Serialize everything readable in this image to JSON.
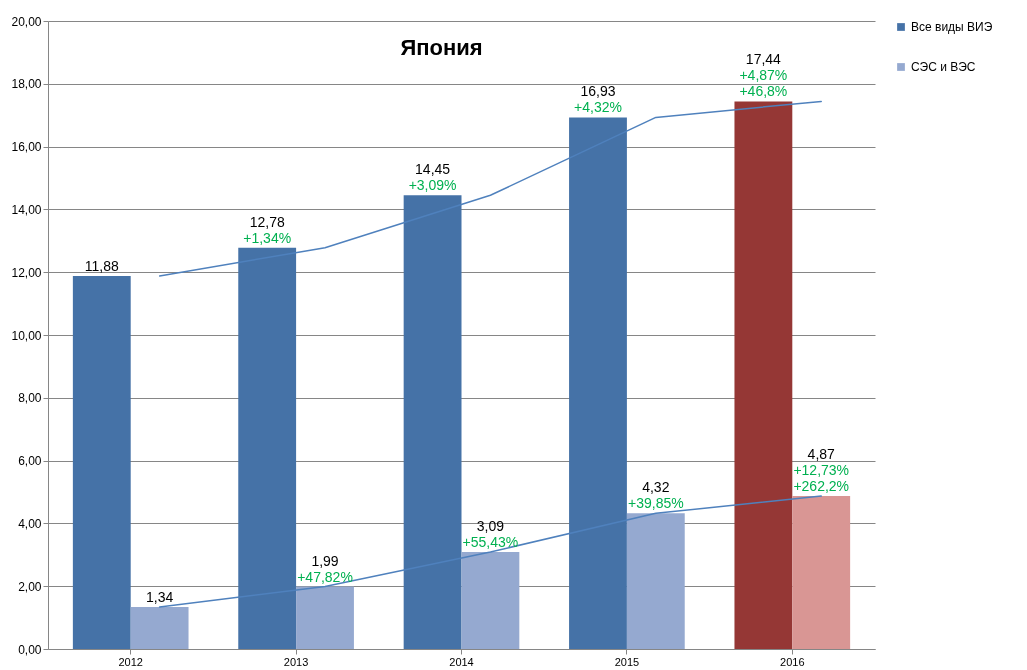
{
  "chart_data": {
    "type": "bar",
    "title": "Япония",
    "categories": [
      "2012",
      "2013",
      "2014",
      "2015",
      "2016"
    ],
    "series": [
      {
        "name": "Все виды ВИЭ",
        "colors": [
          "#4572a7",
          "#4572a7",
          "#4572a7",
          "#4572a7",
          "#953735"
        ],
        "values": [
          11.88,
          12.78,
          14.45,
          16.93,
          17.44
        ],
        "value_labels": [
          "11,88",
          "12,78",
          "14,45",
          "16,93",
          "17,44"
        ]
      },
      {
        "name": "СЭС и ВЭС",
        "colors": [
          "#95a9d0",
          "#95a9d0",
          "#95a9d0",
          "#95a9d0",
          "#d99694"
        ],
        "values": [
          1.34,
          1.99,
          3.09,
          4.32,
          4.87
        ],
        "value_labels": [
          "1,34",
          "1,99",
          "3,09",
          "4,32",
          "4,87"
        ]
      },
      {
        "type": "line",
        "color": "#4f81bd",
        "values": [
          11.88,
          12.78,
          14.45,
          16.93,
          17.44
        ]
      },
      {
        "type": "line",
        "color": "#4f81bd",
        "values": [
          1.34,
          1.99,
          3.09,
          4.32,
          4.87
        ]
      }
    ],
    "annotations": [
      {
        "text": "+1,34%",
        "x": "2013",
        "y": 12.78
      },
      {
        "text": "+3,09%",
        "x": "2014",
        "y": 14.45
      },
      {
        "text": "+4,32%",
        "x": "2015",
        "y": 16.93
      },
      {
        "text": "+4,87%",
        "x": "2016",
        "y": 17.44
      },
      {
        "text": "+46,8%",
        "x": "2016",
        "y": 17.44
      },
      {
        "text": "+47,82%",
        "x": "2013",
        "y": 1.99
      },
      {
        "text": "+55,43%",
        "x": "2014",
        "y": 3.09
      },
      {
        "text": "+39,85%",
        "x": "2015",
        "y": 4.32
      },
      {
        "text": "+12,73%",
        "x": "2016",
        "y": 4.87
      },
      {
        "text": "+262,2%",
        "x": "2016",
        "y": 4.87
      }
    ],
    "ylim": [
      0,
      20
    ],
    "yticks": [
      {
        "value": 0,
        "label": "0,00"
      },
      {
        "value": 2,
        "label": "2,00"
      },
      {
        "value": 4,
        "label": "4,00"
      },
      {
        "value": 6,
        "label": "6,00"
      },
      {
        "value": 8,
        "label": "8,00"
      },
      {
        "value": 10,
        "label": "10,00"
      },
      {
        "value": 12,
        "label": "12,00"
      },
      {
        "value": 14,
        "label": "14,00"
      },
      {
        "value": 16,
        "label": "16,00"
      },
      {
        "value": 18,
        "label": "18,00"
      },
      {
        "value": 20,
        "label": "20,00"
      }
    ],
    "grid": "y",
    "legend": "right"
  }
}
